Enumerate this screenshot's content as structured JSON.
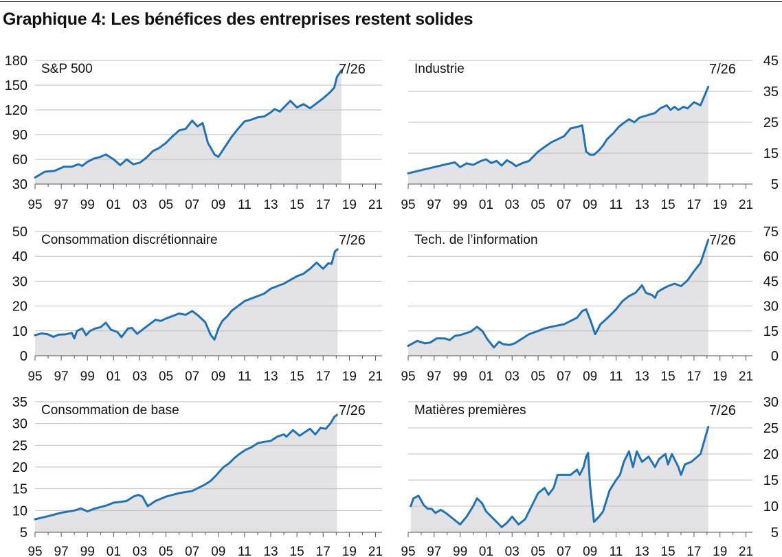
{
  "page": {
    "title": "Graphique 4: Les bénéfices des entreprises restent solides"
  },
  "colors": {
    "line": "#1f73b5",
    "area": "#e3e3e5",
    "grid": "#bdbdbd",
    "axis": "#555555",
    "text": "#111111"
  },
  "chart_data": [
    {
      "type": "area",
      "title": "S&P 500",
      "end_label": "7/26",
      "yaxis_side": "left",
      "ylim": [
        30,
        180
      ],
      "yticks": [
        30,
        60,
        90,
        120,
        150,
        180
      ],
      "xlim": [
        1995,
        2021.5
      ],
      "xticks": [
        1995,
        1997,
        1999,
        2001,
        2003,
        2005,
        2007,
        2009,
        2011,
        2013,
        2015,
        2017,
        2019,
        2021
      ],
      "xticklabels": [
        "95",
        "97",
        "99",
        "01",
        "03",
        "05",
        "07",
        "09",
        "11",
        "13",
        "15",
        "17",
        "19",
        "21"
      ],
      "series": [
        {
          "x": [
            1995,
            1995.75,
            1996.5,
            1997.2,
            1997.8,
            1998.3,
            1998.6,
            1999,
            1999.5,
            2000,
            2000.4,
            2001,
            2001.5,
            2002,
            2002.5,
            2003,
            2003.5,
            2004,
            2004.5,
            2005,
            2005.5,
            2006,
            2006.5,
            2007,
            2007.4,
            2007.8,
            2008.2,
            2008.7,
            2009,
            2009.5,
            2010,
            2010.5,
            2011,
            2011.5,
            2012,
            2012.5,
            2013,
            2013.3,
            2013.7,
            2014,
            2014.5,
            2015,
            2015.5,
            2016,
            2016.5,
            2017,
            2017.5,
            2017.85,
            2018.05,
            2018.4
          ],
          "y": [
            38,
            45,
            46,
            51,
            51,
            54,
            52,
            57,
            61,
            63,
            66,
            60,
            53,
            60,
            54,
            56,
            62,
            70,
            74,
            80,
            88,
            95,
            97,
            107,
            100,
            104,
            80,
            66,
            63,
            75,
            87,
            97,
            106,
            108,
            111,
            112,
            117,
            121,
            118,
            123,
            131,
            123,
            127,
            122,
            128,
            134,
            141,
            147,
            160,
            168
          ]
        }
      ]
    },
    {
      "type": "area",
      "title": "Industrie",
      "end_label": "7/26",
      "yaxis_side": "right",
      "ylim": [
        5,
        45
      ],
      "yticks": [
        5,
        15,
        25,
        35,
        45
      ],
      "xlim": [
        1995,
        2021.5
      ],
      "xticks": [
        1995,
        1997,
        1999,
        2001,
        2003,
        2005,
        2007,
        2009,
        2011,
        2013,
        2015,
        2017,
        2019,
        2021
      ],
      "xticklabels": [
        "95",
        "97",
        "99",
        "01",
        "03",
        "05",
        "07",
        "09",
        "11",
        "13",
        "15",
        "17",
        "19",
        "21"
      ],
      "series": [
        {
          "x": [
            1995,
            1996,
            1997,
            1998,
            1998.6,
            1999,
            1999.5,
            2000,
            2000.6,
            2001,
            2001.4,
            2001.8,
            2002.2,
            2002.6,
            2003,
            2003.3,
            2003.8,
            2004.3,
            2005,
            2005.5,
            2006,
            2006.5,
            2007,
            2007.5,
            2008,
            2008.4,
            2008.7,
            2009,
            2009.3,
            2009.7,
            2010,
            2010.3,
            2010.8,
            2011.2,
            2011.5,
            2012,
            2012.4,
            2012.8,
            2013.2,
            2014,
            2014.4,
            2014.9,
            2015.2,
            2015.5,
            2015.8,
            2016.2,
            2016.5,
            2017,
            2017.5,
            2018.1
          ],
          "y": [
            8.5,
            9.5,
            10.5,
            11.5,
            12,
            10.5,
            11.7,
            11.2,
            12.5,
            13,
            11.8,
            12.5,
            11,
            12.7,
            11.8,
            10.8,
            11.8,
            12.5,
            15.5,
            17,
            18.5,
            19.5,
            20.5,
            23,
            23.5,
            24,
            15.5,
            14.5,
            14.5,
            16,
            17.5,
            19.5,
            21.5,
            23.5,
            24.5,
            26,
            25,
            26.5,
            27,
            28,
            29.5,
            30.5,
            29,
            30,
            29,
            30,
            29.5,
            31.5,
            30.5,
            36.5
          ]
        }
      ]
    },
    {
      "type": "area",
      "title": "Consommation discrétionnaire",
      "end_label": "7/26",
      "yaxis_side": "left",
      "ylim": [
        0,
        50
      ],
      "yticks": [
        0,
        10,
        20,
        30,
        40,
        50
      ],
      "xlim": [
        1995,
        2021.5
      ],
      "xticks": [
        1995,
        1997,
        1999,
        2001,
        2003,
        2005,
        2007,
        2009,
        2011,
        2013,
        2015,
        2017,
        2019,
        2021
      ],
      "xticklabels": [
        "95",
        "97",
        "99",
        "01",
        "03",
        "05",
        "07",
        "09",
        "11",
        "13",
        "15",
        "17",
        "19",
        "21"
      ],
      "series": [
        {
          "x": [
            1995,
            1995.5,
            1996,
            1996.4,
            1996.8,
            1997.3,
            1997.8,
            1998,
            1998.2,
            1998.6,
            1998.9,
            1999.2,
            1999.6,
            2000,
            2000.4,
            2000.8,
            2001.3,
            2001.6,
            2002.1,
            2002.4,
            2002.8,
            2003.2,
            2003.7,
            2004.2,
            2004.6,
            2005,
            2005.5,
            2006,
            2006.5,
            2007,
            2007.5,
            2008,
            2008.4,
            2008.7,
            2009,
            2009.3,
            2009.7,
            2010,
            2010.5,
            2011,
            2011.5,
            2012,
            2012.5,
            2013,
            2013.5,
            2014,
            2014.5,
            2015,
            2015.5,
            2016,
            2016.5,
            2017,
            2017.4,
            2017.65,
            2017.9,
            2018.1
          ],
          "y": [
            8.3,
            9,
            8.6,
            7.6,
            8.5,
            8.6,
            9.2,
            7,
            10,
            11,
            8.3,
            10,
            11,
            11.5,
            13.3,
            10.5,
            9.5,
            7.5,
            11,
            11.2,
            8.8,
            10.5,
            12.5,
            14.5,
            14,
            15,
            16,
            17,
            16.5,
            18,
            16,
            13.5,
            8.5,
            6.5,
            11,
            14,
            16,
            18,
            20,
            22,
            23,
            24,
            25,
            27,
            28,
            29,
            30.5,
            32,
            33,
            35,
            37.5,
            35,
            37.2,
            37,
            42,
            42.8
          ]
        }
      ]
    },
    {
      "type": "area",
      "title": "Tech. de l’information",
      "end_label": "7/26",
      "yaxis_side": "right",
      "ylim": [
        0,
        75
      ],
      "yticks": [
        0,
        15,
        30,
        45,
        60,
        75
      ],
      "xlim": [
        1995,
        2021.5
      ],
      "xticks": [
        1995,
        1997,
        1999,
        2001,
        2003,
        2005,
        2007,
        2009,
        2011,
        2013,
        2015,
        2017,
        2019,
        2021
      ],
      "xticklabels": [
        "95",
        "97",
        "99",
        "01",
        "03",
        "05",
        "07",
        "09",
        "11",
        "13",
        "15",
        "17",
        "19",
        "21"
      ],
      "series": [
        {
          "x": [
            1995,
            1995.7,
            1996.3,
            1996.7,
            1997.2,
            1997.8,
            1998.2,
            1998.6,
            1999,
            1999.8,
            2000.3,
            2000.7,
            2001.1,
            2001.6,
            2002,
            2002.3,
            2002.8,
            2003.2,
            2003.7,
            2004.3,
            2005,
            2005.5,
            2006,
            2007,
            2007.5,
            2008,
            2008.4,
            2008.7,
            2009,
            2009.4,
            2009.8,
            2010.5,
            2011,
            2011.5,
            2012,
            2012.5,
            2013,
            2013.3,
            2013.8,
            2014,
            2014.2,
            2014.5,
            2015,
            2015.5,
            2016,
            2016.5,
            2017,
            2017.5,
            2018.1
          ],
          "y": [
            6,
            9,
            7.5,
            8,
            10.5,
            10.5,
            9.5,
            12,
            12.5,
            14.5,
            17.5,
            15,
            10,
            5,
            8.5,
            7,
            6.5,
            7.5,
            10,
            13,
            15,
            16.5,
            17.5,
            19,
            21,
            23,
            27,
            28,
            22,
            13,
            19,
            24,
            28,
            33,
            36,
            38,
            42.5,
            38,
            36.5,
            35,
            38.5,
            40,
            42,
            43.5,
            42,
            45.5,
            51,
            56,
            70
          ]
        }
      ]
    },
    {
      "type": "area",
      "title": "Consommation de base",
      "end_label": "7/26",
      "yaxis_side": "left",
      "ylim": [
        5,
        35
      ],
      "yticks": [
        5,
        10,
        15,
        20,
        25,
        30,
        35
      ],
      "xlim": [
        1995,
        2021.5
      ],
      "xticks": [
        1995,
        1997,
        1999,
        2001,
        2003,
        2005,
        2007,
        2009,
        2011,
        2013,
        2015,
        2017,
        2019,
        2021
      ],
      "xticklabels": [
        "95",
        "97",
        "99",
        "01",
        "03",
        "05",
        "07",
        "09",
        "11",
        "13",
        "15",
        "17",
        "19",
        "21"
      ],
      "series": [
        {
          "x": [
            1995,
            1996,
            1997,
            1998,
            1998.5,
            1999,
            1999.5,
            2000,
            2000.5,
            2001,
            2001.5,
            2002,
            2002.5,
            2002.9,
            2003.2,
            2003.6,
            2004.2,
            2005,
            2006,
            2007,
            2008,
            2008.4,
            2008.8,
            2009.1,
            2009.4,
            2009.8,
            2010.2,
            2010.6,
            2011.1,
            2011.5,
            2012,
            2012.5,
            2013,
            2013.5,
            2014,
            2014.2,
            2014.7,
            2015.2,
            2015.6,
            2016,
            2016.4,
            2016.8,
            2017.2,
            2017.55,
            2017.85,
            2018.05
          ],
          "y": [
            8,
            8.7,
            9.5,
            10,
            10.5,
            9.8,
            10.4,
            10.8,
            11.2,
            11.8,
            12,
            12.2,
            13.2,
            13.6,
            13.2,
            11,
            12.2,
            13.2,
            14,
            14.5,
            16,
            16.8,
            18,
            19,
            20,
            20.8,
            22,
            23,
            24,
            24.5,
            25.5,
            25.8,
            26,
            27,
            27.5,
            27,
            28.5,
            27.2,
            28,
            28.8,
            27.5,
            29,
            28.8,
            30,
            31.5,
            32
          ]
        }
      ]
    },
    {
      "type": "area",
      "title": "Matières premières",
      "end_label": "7/26",
      "yaxis_side": "right",
      "ylim": [
        5,
        30
      ],
      "yticks": [
        5,
        10,
        15,
        20,
        25,
        30
      ],
      "xlim": [
        1995,
        2021.5
      ],
      "xticks": [
        1995,
        1997,
        1999,
        2001,
        2003,
        2005,
        2007,
        2009,
        2011,
        2013,
        2015,
        2017,
        2019,
        2021
      ],
      "xticklabels": [
        "95",
        "97",
        "99",
        "01",
        "03",
        "05",
        "07",
        "09",
        "11",
        "13",
        "15",
        "17",
        "19",
        "21"
      ],
      "series": [
        {
          "x": [
            1995.2,
            1995.4,
            1995.8,
            1996.2,
            1996.5,
            1996.8,
            1997.1,
            1997.5,
            1997.9,
            1998.5,
            1999,
            1999.5,
            2000,
            2000.3,
            2000.7,
            2001,
            2001.4,
            2001.8,
            2002.2,
            2002.6,
            2003,
            2003.5,
            2004,
            2004.5,
            2005,
            2005.5,
            2005.8,
            2006.2,
            2006.5,
            2007,
            2007.5,
            2008,
            2008.2,
            2008.5,
            2008.7,
            2008.85,
            2009,
            2009.3,
            2009.7,
            2010,
            2010.5,
            2011,
            2011.3,
            2011.6,
            2012,
            2012.3,
            2012.6,
            2013,
            2013.5,
            2014,
            2014.3,
            2014.8,
            2015,
            2015.3,
            2015.8,
            2016,
            2016.3,
            2016.8,
            2017.5,
            2018.1
          ],
          "y": [
            10,
            11.5,
            12,
            10.2,
            9.5,
            9.5,
            8.7,
            9.3,
            8.7,
            7.5,
            6.5,
            8,
            10,
            11.5,
            10.5,
            9,
            8,
            7,
            6,
            6.8,
            8,
            6.5,
            7.5,
            10,
            12.5,
            13.5,
            12.2,
            13.5,
            16,
            16,
            16,
            17,
            16,
            17.5,
            19.5,
            20.2,
            14,
            7,
            8,
            9,
            13,
            15,
            16,
            18.5,
            20.5,
            17.5,
            20.5,
            18.5,
            19.5,
            17.5,
            19,
            20,
            18,
            20,
            17.5,
            16,
            18,
            18.5,
            20,
            25.2
          ]
        }
      ]
    }
  ]
}
